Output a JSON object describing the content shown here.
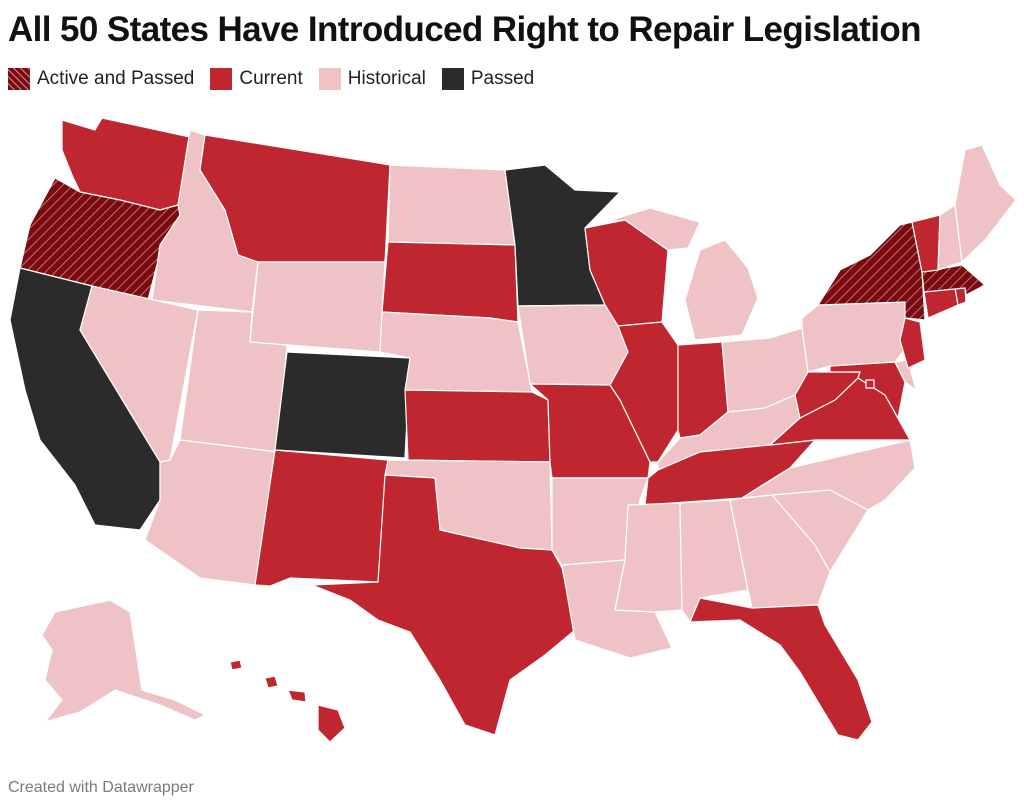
{
  "title": "All 50 States Have Introduced Right to Repair Legislation",
  "footer": "Created with Datawrapper",
  "legend": [
    {
      "key": "active_passed",
      "label": "Active and Passed",
      "color": "#7a0b11"
    },
    {
      "key": "current",
      "label": "Current",
      "color": "#c0262f"
    },
    {
      "key": "historical",
      "label": "Historical",
      "color": "#efc3c6"
    },
    {
      "key": "passed",
      "label": "Passed",
      "color": "#2b2b2b"
    }
  ],
  "colors": {
    "active_passed": "#7a0b11",
    "current": "#c0262f",
    "historical": "#efc3c6",
    "passed": "#2b2b2b",
    "hatch": "#d4888d"
  },
  "states": {
    "WA": "current",
    "OR": "active_passed",
    "CA": "passed",
    "ID": "historical",
    "NV": "historical",
    "MT": "current",
    "WY": "historical",
    "UT": "historical",
    "AZ": "historical",
    "CO": "passed",
    "NM": "current",
    "ND": "historical",
    "SD": "current",
    "NE": "historical",
    "KS": "current",
    "OK": "historical",
    "TX": "current",
    "MN": "passed",
    "IA": "historical",
    "MO": "current",
    "AR": "historical",
    "LA": "historical",
    "WI": "current",
    "IL": "current",
    "MI": "historical",
    "IN": "current",
    "OH": "historical",
    "KY": "historical",
    "TN": "current",
    "MS": "historical",
    "AL": "historical",
    "GA": "historical",
    "FL": "current",
    "SC": "historical",
    "NC": "historical",
    "VA": "current",
    "WV": "current",
    "MD": "current",
    "DE": "historical",
    "PA": "historical",
    "NJ": "current",
    "NY": "active_passed",
    "CT": "current",
    "RI": "current",
    "MA": "active_passed",
    "VT": "current",
    "NH": "historical",
    "ME": "historical",
    "AK": "historical",
    "HI": "current",
    "DC": "current"
  }
}
